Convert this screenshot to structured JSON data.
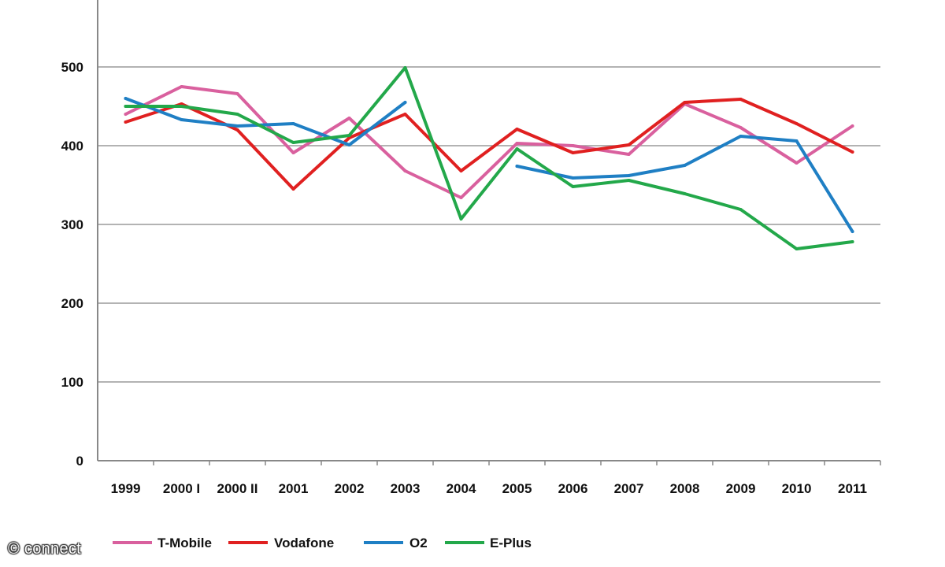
{
  "chart_data": {
    "type": "line",
    "categories": [
      "1999",
      "2000 I",
      "2000 II",
      "2001",
      "2002",
      "2003",
      "2004",
      "2005",
      "2006",
      "2007",
      "2008",
      "2009",
      "2010",
      "2011"
    ],
    "y_ticks": [
      "0",
      "100",
      "200",
      "300",
      "400",
      "500"
    ],
    "ylim": [
      0,
      600
    ],
    "grid": "horizontal",
    "legend_position": "bottom",
    "series": [
      {
        "name": "T-Mobile",
        "color": "#d9609e",
        "values": [
          440,
          475,
          466,
          391,
          435,
          368,
          334,
          403,
          400,
          389,
          453,
          423,
          378,
          425
        ]
      },
      {
        "name": "Vodafone",
        "color": "#e02020",
        "values": [
          430,
          453,
          420,
          345,
          410,
          440,
          368,
          421,
          391,
          401,
          455,
          459,
          428,
          392
        ]
      },
      {
        "name": "O2",
        "color": "#1f7fc4",
        "values": [
          460,
          433,
          425,
          428,
          401,
          455,
          null,
          374,
          359,
          362,
          375,
          412,
          406,
          291
        ]
      },
      {
        "name": "E-Plus",
        "color": "#23a84a",
        "values": [
          450,
          450,
          440,
          404,
          413,
          499,
          307,
          396,
          348,
          356,
          339,
          319,
          269,
          278
        ]
      }
    ]
  },
  "watermark": "© connect"
}
